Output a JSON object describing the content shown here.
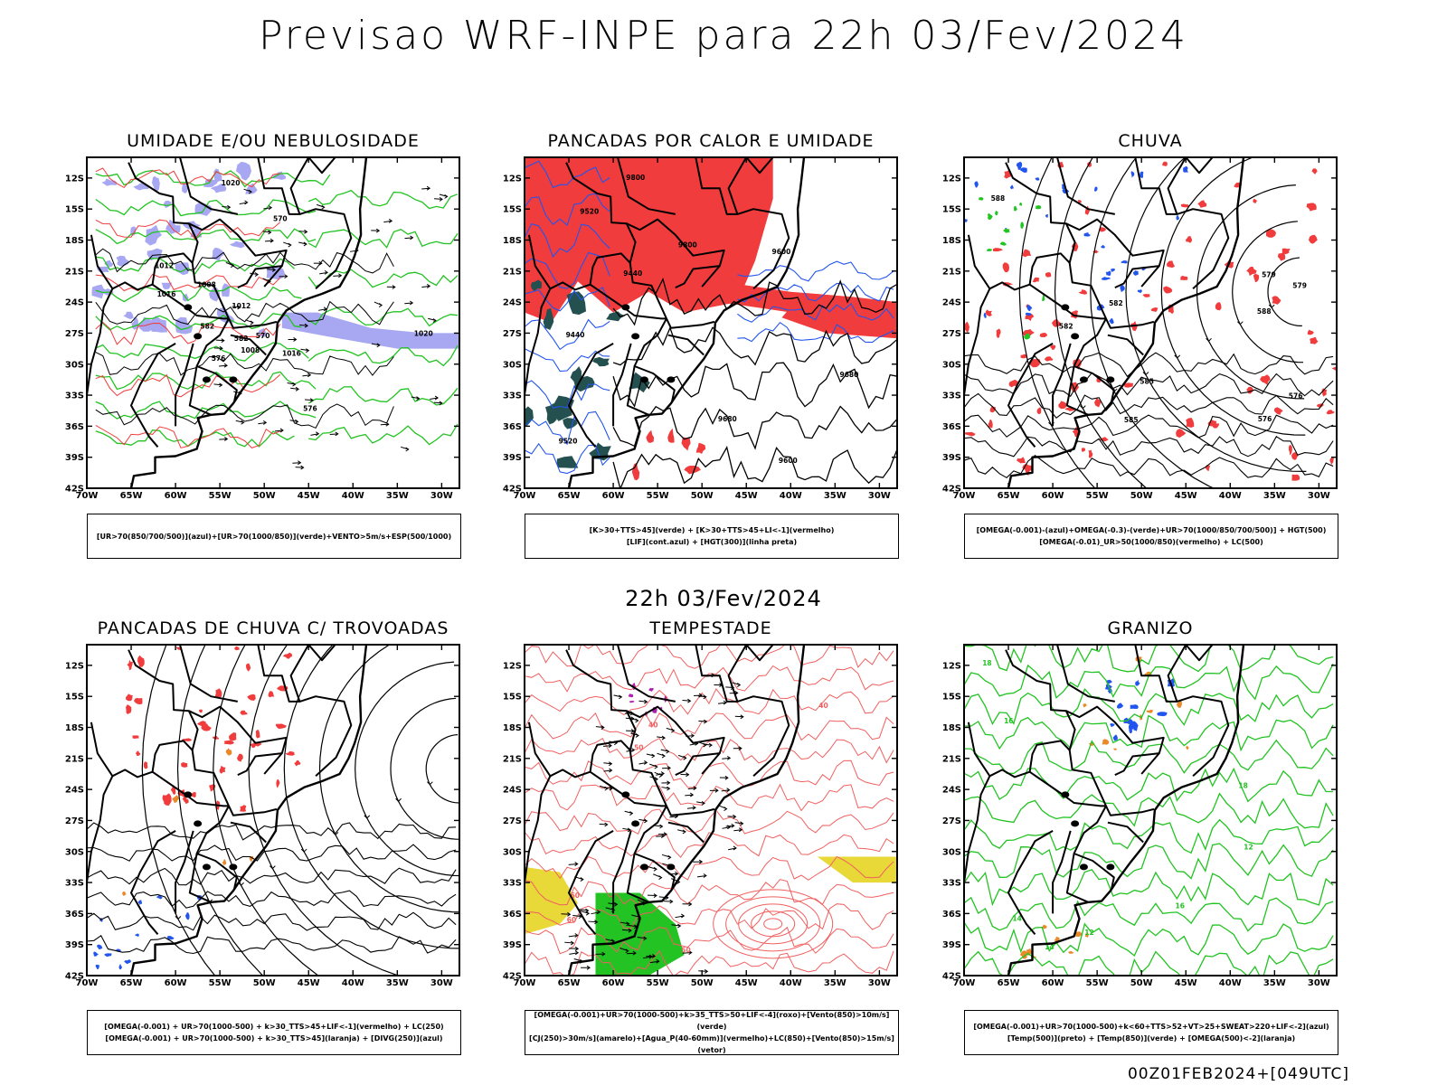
{
  "header": {
    "title": "Previsao WRF-INPE  para 22h 03/Fev/2024",
    "subtitle": "22h 03/Fev/2024",
    "run_info": "00Z01FEB2024+[049UTC]"
  },
  "axes": {
    "lat_labels": [
      "12S",
      "15S",
      "18S",
      "21S",
      "24S",
      "27S",
      "30S",
      "33S",
      "36S",
      "39S",
      "42S"
    ],
    "lon_labels": [
      "70W",
      "65W",
      "60W",
      "55W",
      "50W",
      "45W",
      "40W",
      "35W",
      "30W"
    ]
  },
  "panels": [
    {
      "id": "umidade",
      "title": "UMIDADE E/OU NEBULOSIDADE",
      "legend": [
        "[UR>70(850/700/500)](azul)+[UR>70(1000/850)](verde)+VENTO>5m/s+ESP(500/1000)"
      ],
      "contour_labels": [
        "1012",
        "1016",
        "1008",
        "1020",
        "576",
        "570",
        "582"
      ]
    },
    {
      "id": "pancadas-calor",
      "title": "PANCADAS POR CALOR E UMIDADE",
      "legend": [
        "[K>30+TTS>45](verde) + [K>30+TTS>45+LI<-1](vermelho)",
        "[LIF](cont.azul) + [HGT(300)](linha preta)"
      ],
      "contour_labels": [
        "9680",
        "9600",
        "9520",
        "9440",
        "9800"
      ]
    },
    {
      "id": "chuva",
      "title": "CHUVA",
      "legend": [
        "[OMEGA(-0.001)-(azul)+OMEGA(-0.3)-(verde)+UR>70(1000/850/700/500)] + HGT(500)",
        "[OMEGA(-0.01)_UR>50(1000/850)(vermelho) + LC(500)"
      ],
      "contour_labels": [
        "588",
        "582",
        "576",
        "585",
        "579"
      ]
    },
    {
      "id": "trovoadas",
      "title": "PANCADAS DE CHUVA C/ TROVOADAS",
      "legend": [
        "[OMEGA(-0.001) + UR>70(1000-500) + k>30_TTS>45+LIF<-1](vermelho) + LC(250)",
        "[OMEGA(-0.001) + UR>70(1000-500) + k>30_TTS>45](laranja) + [DIVG(250)](azul)"
      ],
      "contour_labels": []
    },
    {
      "id": "tempestade",
      "title": "TEMPESTADE",
      "legend": [
        "[OMEGA(-0.001)+UR>70(1000-500)+k>35_TTS>50+LIF<-4](roxo)+[Vento(850)>10m/s](verde)",
        "[CJ(250)>30m/s](amarelo)+[Agua_P(40-60mm)](vermelho)+LC(850)+[Vento(850)>15m/s](vetor)"
      ],
      "contour_labels": [
        "60",
        "50",
        "40"
      ]
    },
    {
      "id": "granizo",
      "title": "GRANIZO",
      "legend": [
        "[OMEGA(-0.001)+UR>70(1000-500)+k<60+TTS>52+VT>25+SWEAT>220+LIF<-2](azul)",
        "[Temp(500)](preto) + [Temp(850)](verde) + [OMEGA(500)<-2](laranja)"
      ],
      "contour_labels": [
        "16",
        "12",
        "14",
        "18"
      ]
    }
  ],
  "colors": {
    "red": "#f03c3c",
    "green": "#22c322",
    "blue": "#2255ee",
    "lavender": "#a7a7f2",
    "dark_teal": "#245050",
    "yellow": "#e8d838",
    "orange": "#e88a2a",
    "purple": "#b020b0",
    "salmon": "#f06060"
  }
}
